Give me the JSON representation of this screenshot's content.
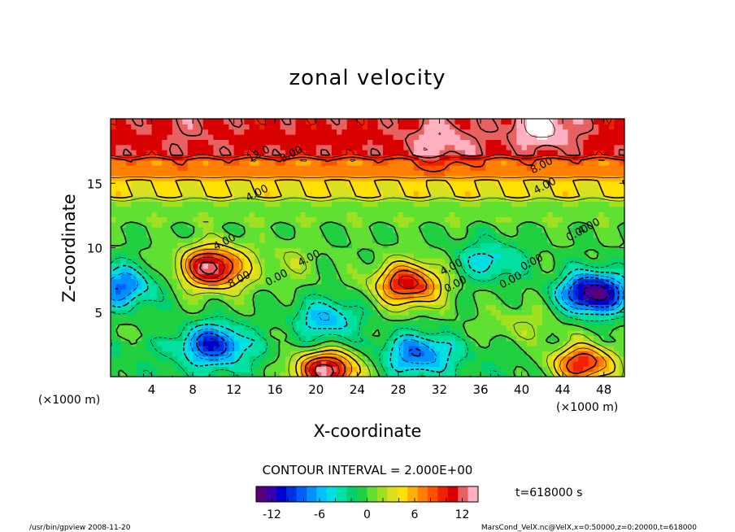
{
  "chart_data": {
    "type": "heatmap",
    "title": "zonal velocity",
    "xlabel": "X-coordinate",
    "ylabel": "Z-coordinate",
    "x_unit_left": "(×1000 m)",
    "x_unit_right": "(×1000 m)",
    "xlim": [
      0,
      50
    ],
    "ylim": [
      0,
      20
    ],
    "x_ticks": [
      4,
      8,
      12,
      16,
      20,
      24,
      28,
      32,
      36,
      40,
      44,
      48
    ],
    "y_ticks": [
      5,
      10,
      15
    ],
    "contour_interval": "CONTOUR INTERVAL = 2.000E+00",
    "time_label": "t=618000 s",
    "colorbar": {
      "min": -14,
      "max": 14,
      "ticks": [
        -12,
        -6,
        0,
        6,
        12
      ],
      "colors": [
        "#5a007a",
        "#3a00b0",
        "#0000cc",
        "#0030e6",
        "#0060ff",
        "#0090ff",
        "#00c0ff",
        "#00e0e0",
        "#00e0a0",
        "#00d070",
        "#20d040",
        "#60e030",
        "#a0e020",
        "#d8e020",
        "#ffe000",
        "#ffb000",
        "#ff8000",
        "#ff5000",
        "#f02000",
        "#d80000",
        "#e86060",
        "#ffb0c0"
      ]
    },
    "contour_labels": [
      "12.0",
      "8.00",
      "8.00",
      "4.00",
      "4.00",
      "4.00",
      "4.00",
      "8.00",
      "0.00",
      "4.00",
      "0.00",
      "0.00",
      "0.00",
      "0.00",
      "4.00"
    ],
    "field": {
      "base": [
        {
          "zmin": 0,
          "zmax": 3,
          "value": -1
        },
        {
          "zmin": 3,
          "zmax": 12,
          "value": 0
        },
        {
          "zmin": 12,
          "zmax": 14,
          "value": 1
        },
        {
          "zmin": 14,
          "zmax": 15.5,
          "value": 4
        },
        {
          "zmin": 15.5,
          "zmax": 17,
          "value": 7
        },
        {
          "zmin": 17,
          "zmax": 20,
          "value": 11
        }
      ],
      "features": [
        {
          "x": 10,
          "z": 8.5,
          "value": 13
        },
        {
          "x": 29,
          "z": 7.2,
          "value": 11
        },
        {
          "x": 21,
          "z": 0.5,
          "value": 13
        },
        {
          "x": 46,
          "z": 1,
          "value": 10
        },
        {
          "x": 47,
          "z": 6.5,
          "value": -14
        },
        {
          "x": 1,
          "z": 7,
          "value": -8
        },
        {
          "x": 10,
          "z": 2.5,
          "value": -10
        },
        {
          "x": 21,
          "z": 4.5,
          "value": -6
        },
        {
          "x": 30,
          "z": 1.8,
          "value": -8
        },
        {
          "x": 37,
          "z": 9,
          "value": -5
        },
        {
          "x": 40,
          "z": 4,
          "value": 2
        },
        {
          "x": 17,
          "z": 9,
          "value": 2
        },
        {
          "x": 32,
          "z": 18.3,
          "value": 14
        },
        {
          "x": 42,
          "z": 19.4,
          "value": 15
        },
        {
          "x": 8,
          "z": 19.3,
          "value": 12
        }
      ]
    }
  },
  "footer": {
    "left": "/usr/bin/gpview  2008-11-20",
    "right": "MarsCond_VelX.nc@VelX,x=0:50000,z=0:20000,t=618000"
  }
}
